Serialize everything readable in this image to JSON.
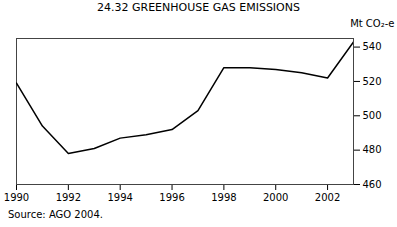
{
  "chart_data": {
    "type": "line",
    "title": "24.32   GREENHOUSE GAS EMISSIONS",
    "ylabel": "Mt CO₂-e",
    "source": "Source:  AGO 2004.",
    "x": [
      1990,
      1991,
      1992,
      1993,
      1994,
      1995,
      1996,
      1997,
      1998,
      1999,
      2000,
      2001,
      2002,
      2003
    ],
    "values": [
      519,
      494,
      478,
      481,
      487,
      489,
      492,
      503,
      528,
      528,
      527,
      525,
      522,
      543
    ],
    "color": "#000000",
    "xlim": [
      1990,
      2003
    ],
    "xticks": [
      1990,
      1992,
      1994,
      1996,
      1998,
      2000,
      2002
    ],
    "ylim": [
      460,
      545
    ],
    "yticks": [
      460,
      480,
      500,
      520,
      540
    ]
  }
}
